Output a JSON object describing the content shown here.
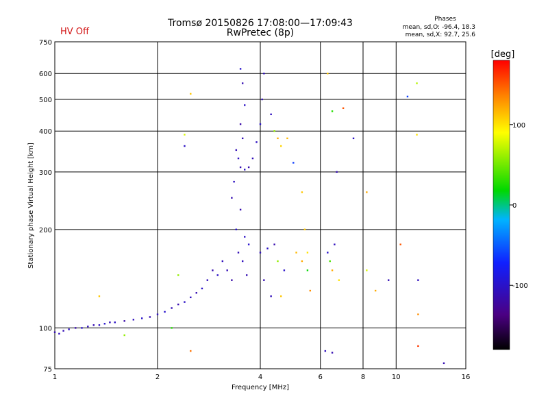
{
  "header": {
    "status": "HV Off",
    "title_line1": "Tromsø 20150826 17:08:00—17:09:43",
    "title_line2": "RwPretec (8p)",
    "stats_title": "Phases",
    "stats_line1": "mean, sd,O: -96.4, 18.3",
    "stats_line2": "mean, sd,X:  92.7, 25.6"
  },
  "colors": {
    "status": "#d21414",
    "points": "#1428ff"
  },
  "colorbar": {
    "label": "[deg]",
    "range": [
      -180,
      180
    ],
    "tick_labels": [
      "100",
      "0",
      "-100"
    ],
    "tick_values": [
      100,
      0,
      -100
    ]
  },
  "chart_data": {
    "type": "scatter",
    "xlabel": "Frequency [MHz]",
    "ylabel": "Stationary phase Virtual Height [km]",
    "x_scale": "log",
    "y_scale": "log",
    "xlim": [
      1,
      16
    ],
    "ylim": [
      75,
      750
    ],
    "grid": true,
    "x_ticks": [
      1,
      2,
      4,
      6,
      8,
      10,
      16
    ],
    "x_tick_labels": [
      "1",
      "2",
      "4",
      "6",
      "8",
      "10",
      "16"
    ],
    "y_ticks": [
      75,
      100,
      200,
      300,
      400,
      500,
      600,
      750
    ],
    "y_tick_labels": [
      "75",
      "100",
      "200",
      "300",
      "400",
      "500",
      "600",
      "750"
    ],
    "color_by": "phase [deg]",
    "points": [
      {
        "x": 1.0,
        "y": 97,
        "c": -110
      },
      {
        "x": 1.03,
        "y": 96,
        "c": -105
      },
      {
        "x": 1.06,
        "y": 98,
        "c": -108
      },
      {
        "x": 1.1,
        "y": 99,
        "c": -100
      },
      {
        "x": 1.15,
        "y": 100,
        "c": -112
      },
      {
        "x": 1.2,
        "y": 100,
        "c": -98
      },
      {
        "x": 1.25,
        "y": 101,
        "c": -104
      },
      {
        "x": 1.3,
        "y": 102,
        "c": -110
      },
      {
        "x": 1.35,
        "y": 102,
        "c": -102
      },
      {
        "x": 1.4,
        "y": 103,
        "c": -96
      },
      {
        "x": 1.45,
        "y": 104,
        "c": -108
      },
      {
        "x": 1.5,
        "y": 104,
        "c": -100
      },
      {
        "x": 1.6,
        "y": 105,
        "c": -115
      },
      {
        "x": 1.7,
        "y": 106,
        "c": -104
      },
      {
        "x": 1.8,
        "y": 107,
        "c": -98
      },
      {
        "x": 1.9,
        "y": 108,
        "c": -110
      },
      {
        "x": 2.0,
        "y": 110,
        "c": -102
      },
      {
        "x": 2.1,
        "y": 112,
        "c": -96
      },
      {
        "x": 2.2,
        "y": 115,
        "c": -108
      },
      {
        "x": 2.3,
        "y": 118,
        "c": -112
      },
      {
        "x": 2.4,
        "y": 120,
        "c": -100
      },
      {
        "x": 2.5,
        "y": 124,
        "c": -104
      },
      {
        "x": 2.6,
        "y": 128,
        "c": -110
      },
      {
        "x": 2.7,
        "y": 132,
        "c": -98
      },
      {
        "x": 2.8,
        "y": 140,
        "c": -106
      },
      {
        "x": 2.9,
        "y": 150,
        "c": -112
      },
      {
        "x": 3.0,
        "y": 145,
        "c": -100
      },
      {
        "x": 3.1,
        "y": 160,
        "c": -105
      },
      {
        "x": 3.2,
        "y": 150,
        "c": -108
      },
      {
        "x": 3.3,
        "y": 140,
        "c": -115
      },
      {
        "x": 3.3,
        "y": 250,
        "c": -110
      },
      {
        "x": 3.35,
        "y": 280,
        "c": -102
      },
      {
        "x": 3.4,
        "y": 200,
        "c": -98
      },
      {
        "x": 3.45,
        "y": 170,
        "c": -108
      },
      {
        "x": 3.5,
        "y": 230,
        "c": -112
      },
      {
        "x": 3.55,
        "y": 160,
        "c": -104
      },
      {
        "x": 3.6,
        "y": 190,
        "c": -100
      },
      {
        "x": 3.65,
        "y": 145,
        "c": -110
      },
      {
        "x": 3.7,
        "y": 180,
        "c": -96
      },
      {
        "x": 3.4,
        "y": 350,
        "c": -108
      },
      {
        "x": 3.45,
        "y": 330,
        "c": -104
      },
      {
        "x": 3.5,
        "y": 310,
        "c": -110
      },
      {
        "x": 3.6,
        "y": 305,
        "c": -100
      },
      {
        "x": 3.7,
        "y": 310,
        "c": -112
      },
      {
        "x": 3.8,
        "y": 330,
        "c": -106
      },
      {
        "x": 3.9,
        "y": 370,
        "c": -102
      },
      {
        "x": 4.0,
        "y": 420,
        "c": -98
      },
      {
        "x": 4.05,
        "y": 500,
        "c": -108
      },
      {
        "x": 4.1,
        "y": 600,
        "c": -104
      },
      {
        "x": 3.5,
        "y": 420,
        "c": -115
      },
      {
        "x": 3.6,
        "y": 480,
        "c": -100
      },
      {
        "x": 3.55,
        "y": 560,
        "c": -110
      },
      {
        "x": 3.5,
        "y": 620,
        "c": -96
      },
      {
        "x": 3.55,
        "y": 380,
        "c": -108
      },
      {
        "x": 4.0,
        "y": 170,
        "c": -104
      },
      {
        "x": 4.1,
        "y": 140,
        "c": -110
      },
      {
        "x": 4.2,
        "y": 175,
        "c": -100
      },
      {
        "x": 4.3,
        "y": 125,
        "c": -106
      },
      {
        "x": 4.4,
        "y": 180,
        "c": -112
      },
      {
        "x": 4.5,
        "y": 160,
        "c": 60
      },
      {
        "x": 4.6,
        "y": 125,
        "c": 110
      },
      {
        "x": 4.7,
        "y": 150,
        "c": -98
      },
      {
        "x": 4.5,
        "y": 380,
        "c": 120
      },
      {
        "x": 4.6,
        "y": 360,
        "c": 105
      },
      {
        "x": 4.3,
        "y": 450,
        "c": -104
      },
      {
        "x": 4.4,
        "y": 400,
        "c": 60
      },
      {
        "x": 4.8,
        "y": 380,
        "c": 115
      },
      {
        "x": 5.0,
        "y": 320,
        "c": -60
      },
      {
        "x": 5.1,
        "y": 170,
        "c": 115
      },
      {
        "x": 5.3,
        "y": 160,
        "c": 120
      },
      {
        "x": 5.4,
        "y": 200,
        "c": 110
      },
      {
        "x": 5.5,
        "y": 170,
        "c": 100
      },
      {
        "x": 5.6,
        "y": 130,
        "c": 130
      },
      {
        "x": 5.3,
        "y": 260,
        "c": 110
      },
      {
        "x": 5.5,
        "y": 150,
        "c": 20
      },
      {
        "x": 6.3,
        "y": 170,
        "c": -96
      },
      {
        "x": 6.4,
        "y": 160,
        "c": 40
      },
      {
        "x": 6.5,
        "y": 150,
        "c": 120
      },
      {
        "x": 6.6,
        "y": 180,
        "c": -104
      },
      {
        "x": 6.8,
        "y": 140,
        "c": 100
      },
      {
        "x": 6.5,
        "y": 460,
        "c": 30
      },
      {
        "x": 6.7,
        "y": 300,
        "c": -110
      },
      {
        "x": 6.3,
        "y": 600,
        "c": 110
      },
      {
        "x": 7.0,
        "y": 470,
        "c": 150
      },
      {
        "x": 7.5,
        "y": 380,
        "c": -100
      },
      {
        "x": 8.2,
        "y": 260,
        "c": 120
      },
      {
        "x": 8.2,
        "y": 150,
        "c": 80
      },
      {
        "x": 8.7,
        "y": 130,
        "c": 120
      },
      {
        "x": 9.5,
        "y": 140,
        "c": -108
      },
      {
        "x": 6.2,
        "y": 85,
        "c": -104
      },
      {
        "x": 6.5,
        "y": 84,
        "c": -110
      },
      {
        "x": 10.3,
        "y": 180,
        "c": 150
      },
      {
        "x": 10.8,
        "y": 510,
        "c": -60
      },
      {
        "x": 11.5,
        "y": 560,
        "c": 70
      },
      {
        "x": 11.5,
        "y": 390,
        "c": 100
      },
      {
        "x": 11.6,
        "y": 140,
        "c": -104
      },
      {
        "x": 11.6,
        "y": 110,
        "c": 130
      },
      {
        "x": 11.6,
        "y": 88,
        "c": 160
      },
      {
        "x": 13.8,
        "y": 78,
        "c": -110
      },
      {
        "x": 2.4,
        "y": 360,
        "c": -100
      },
      {
        "x": 2.4,
        "y": 390,
        "c": 80
      },
      {
        "x": 2.5,
        "y": 520,
        "c": 110
      },
      {
        "x": 2.5,
        "y": 85,
        "c": 140
      },
      {
        "x": 1.6,
        "y": 95,
        "c": 60
      },
      {
        "x": 1.35,
        "y": 125,
        "c": 110
      },
      {
        "x": 2.2,
        "y": 100,
        "c": 30
      },
      {
        "x": 2.3,
        "y": 145,
        "c": 60
      }
    ]
  }
}
